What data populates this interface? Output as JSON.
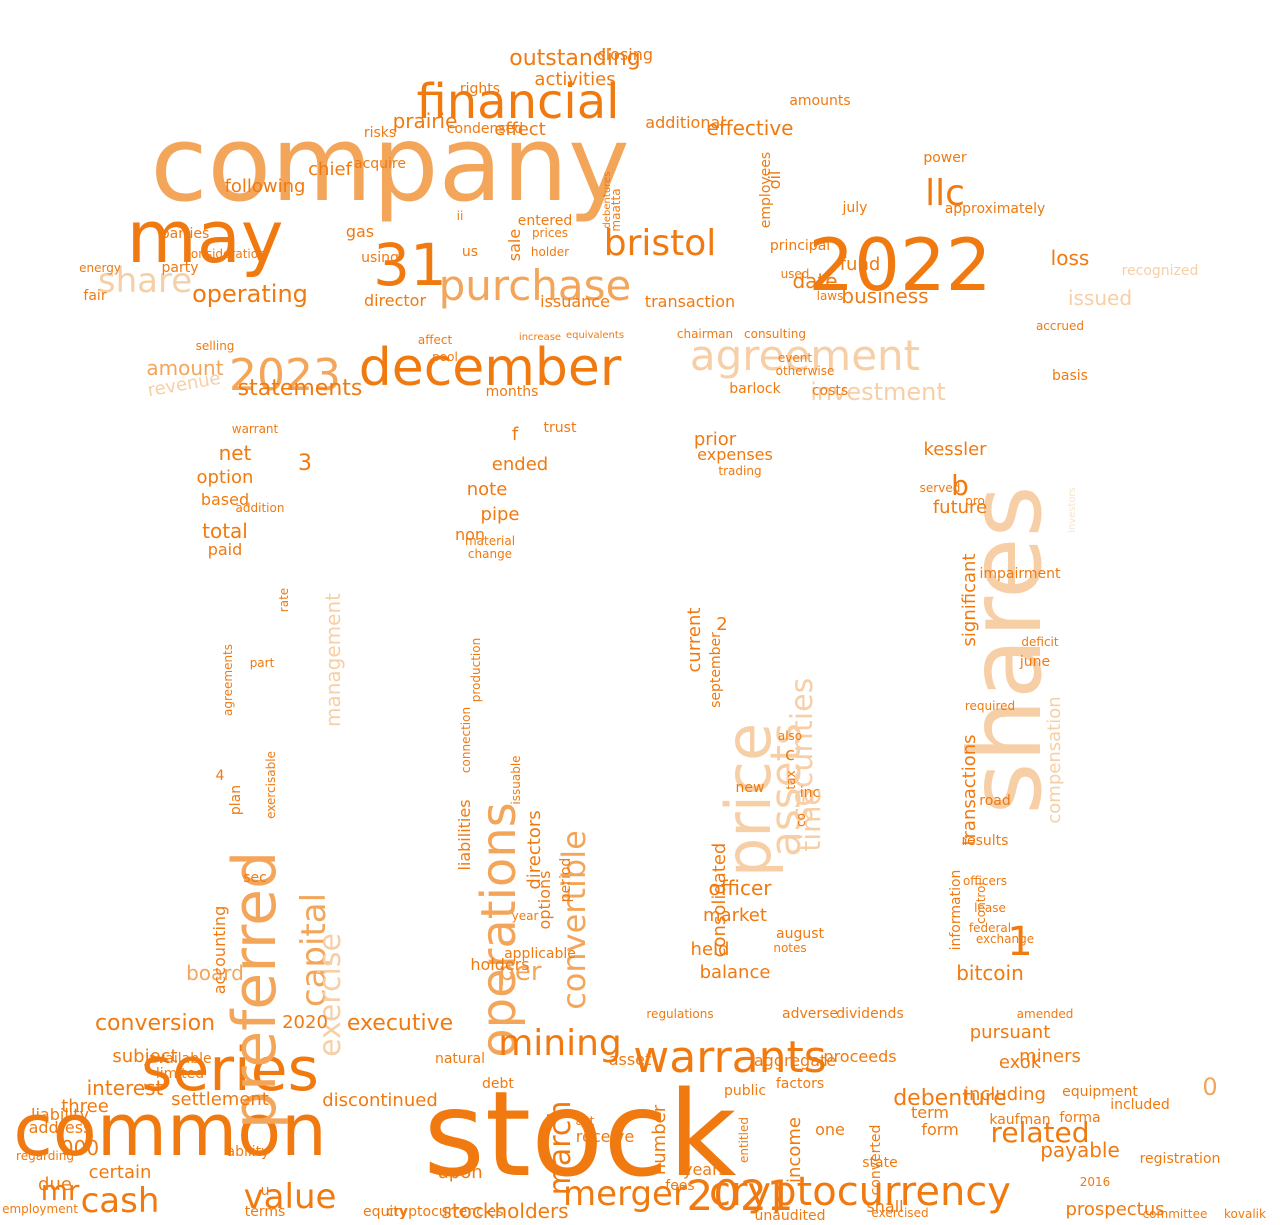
{
  "wordcloud": {
    "palette": {
      "dark": "#f07a10",
      "mid": "#f3a55a",
      "light": "#f7cfa6",
      "pale": "#f9e2c9"
    },
    "shape": "bank-building",
    "words": [
      {
        "text": "company",
        "tone": "mid"
      },
      {
        "text": "stock",
        "tone": "dark"
      },
      {
        "text": "common",
        "tone": "dark"
      },
      {
        "text": "shares",
        "tone": "light"
      },
      {
        "text": "series",
        "tone": "dark"
      },
      {
        "text": "december",
        "tone": "dark"
      },
      {
        "text": "may",
        "tone": "dark"
      },
      {
        "text": "2022",
        "tone": "dark"
      },
      {
        "text": "31",
        "tone": "dark"
      },
      {
        "text": "preferred",
        "tone": "mid"
      },
      {
        "text": "price",
        "tone": "light"
      },
      {
        "text": "financial",
        "tone": "dark"
      },
      {
        "text": "cryptocurrency",
        "tone": "dark"
      },
      {
        "text": "operations",
        "tone": "mid"
      },
      {
        "text": "warrants",
        "tone": "dark"
      },
      {
        "text": "agreement",
        "tone": "light"
      },
      {
        "text": "purchase",
        "tone": "mid"
      },
      {
        "text": "bristol",
        "tone": "dark"
      },
      {
        "text": "mining",
        "tone": "dark"
      },
      {
        "text": "2021",
        "tone": "dark"
      },
      {
        "text": "value",
        "tone": "dark"
      },
      {
        "text": "cash",
        "tone": "dark"
      },
      {
        "text": "merger",
        "tone": "dark"
      },
      {
        "text": "2023",
        "tone": "mid"
      },
      {
        "text": "capital",
        "tone": "mid"
      },
      {
        "text": "convertible",
        "tone": "mid"
      },
      {
        "text": "exercise",
        "tone": "light"
      },
      {
        "text": "assets",
        "tone": "light"
      },
      {
        "text": "share",
        "tone": "light"
      },
      {
        "text": "llc",
        "tone": "dark"
      },
      {
        "text": "march",
        "tone": "dark"
      },
      {
        "text": "securities",
        "tone": "light"
      },
      {
        "text": "outstanding",
        "tone": "dark"
      },
      {
        "text": "operating",
        "tone": "dark"
      },
      {
        "text": "related",
        "tone": "dark"
      },
      {
        "text": "statements",
        "tone": "dark"
      },
      {
        "text": "investment",
        "tone": "light"
      },
      {
        "text": "conversion",
        "tone": "dark"
      },
      {
        "text": "per",
        "tone": "mid"
      },
      {
        "text": "mr",
        "tone": "dark"
      },
      {
        "text": "1",
        "tone": "dark"
      },
      {
        "text": "b",
        "tone": "dark"
      },
      {
        "text": "date",
        "tone": "dark"
      },
      {
        "text": "business",
        "tone": "dark"
      },
      {
        "text": "debenture",
        "tone": "dark"
      },
      {
        "text": "executive",
        "tone": "dark"
      },
      {
        "text": "stockholders",
        "tone": "dark"
      },
      {
        "text": "prairie",
        "tone": "dark"
      },
      {
        "text": "effective",
        "tone": "dark"
      },
      {
        "text": "activities",
        "tone": "dark"
      },
      {
        "text": "effect",
        "tone": "dark"
      },
      {
        "text": "time",
        "tone": "light"
      },
      {
        "text": "management",
        "tone": "light"
      },
      {
        "text": "transactions",
        "tone": "dark"
      },
      {
        "text": "significant",
        "tone": "dark"
      },
      {
        "text": "compensation",
        "tone": "light"
      },
      {
        "text": "consolidated",
        "tone": "dark"
      },
      {
        "text": "officer",
        "tone": "dark"
      },
      {
        "text": "market",
        "tone": "dark"
      },
      {
        "text": "balance",
        "tone": "dark"
      },
      {
        "text": "held",
        "tone": "dark"
      },
      {
        "text": "board",
        "tone": "mid"
      },
      {
        "text": "total",
        "tone": "dark"
      },
      {
        "text": "net",
        "tone": "dark"
      },
      {
        "text": "option",
        "tone": "dark"
      },
      {
        "text": "based",
        "tone": "dark"
      },
      {
        "text": "paid",
        "tone": "dark"
      },
      {
        "text": "3",
        "tone": "dark"
      },
      {
        "text": "amount",
        "tone": "mid"
      },
      {
        "text": "revenue",
        "tone": "light"
      },
      {
        "text": "loss",
        "tone": "dark"
      },
      {
        "text": "fund",
        "tone": "dark"
      },
      {
        "text": "issued",
        "tone": "light"
      },
      {
        "text": "chief",
        "tone": "dark"
      },
      {
        "text": "following",
        "tone": "dark"
      },
      {
        "text": "gas",
        "tone": "dark"
      },
      {
        "text": "director",
        "tone": "dark"
      },
      {
        "text": "issuance",
        "tone": "dark"
      },
      {
        "text": "transaction",
        "tone": "dark"
      },
      {
        "text": "kessler",
        "tone": "dark"
      },
      {
        "text": "future",
        "tone": "dark"
      },
      {
        "text": "bitcoin",
        "tone": "dark"
      },
      {
        "text": "prior",
        "tone": "dark"
      },
      {
        "text": "expenses",
        "tone": "dark"
      },
      {
        "text": "current",
        "tone": "dark"
      },
      {
        "text": "ended",
        "tone": "dark"
      },
      {
        "text": "note",
        "tone": "dark"
      },
      {
        "text": "pipe",
        "tone": "dark"
      },
      {
        "text": "non",
        "tone": "dark"
      },
      {
        "text": "holders",
        "tone": "dark"
      },
      {
        "text": "interest",
        "tone": "dark"
      },
      {
        "text": "certain",
        "tone": "dark"
      },
      {
        "text": "000",
        "tone": "dark"
      },
      {
        "text": "subject",
        "tone": "dark"
      },
      {
        "text": "settlement",
        "tone": "dark"
      },
      {
        "text": "discontinued",
        "tone": "dark"
      },
      {
        "text": "upon",
        "tone": "dark"
      },
      {
        "text": "pursuant",
        "tone": "dark"
      },
      {
        "text": "miners",
        "tone": "dark"
      },
      {
        "text": "including",
        "tone": "dark"
      },
      {
        "text": "payable",
        "tone": "dark"
      },
      {
        "text": "prospectus",
        "tone": "dark"
      },
      {
        "text": "aggregate",
        "tone": "dark"
      },
      {
        "text": "proceeds",
        "tone": "dark"
      },
      {
        "text": "number",
        "tone": "dark"
      },
      {
        "text": "income",
        "tone": "dark"
      },
      {
        "text": "accounting",
        "tone": "dark"
      },
      {
        "text": "liabilities",
        "tone": "dark"
      },
      {
        "text": "directors",
        "tone": "dark"
      },
      {
        "text": "options",
        "tone": "dark"
      },
      {
        "text": "2020",
        "tone": "dark"
      },
      {
        "text": "asset",
        "tone": "dark"
      },
      {
        "text": "form",
        "tone": "dark"
      },
      {
        "text": "term",
        "tone": "dark"
      },
      {
        "text": "three",
        "tone": "dark"
      },
      {
        "text": "address",
        "tone": "dark"
      },
      {
        "text": "liability",
        "tone": "dark"
      },
      {
        "text": "due",
        "tone": "dark"
      },
      {
        "text": "exok",
        "tone": "dark"
      },
      {
        "text": "registration",
        "tone": "dark"
      },
      {
        "text": "state",
        "tone": "dark"
      },
      {
        "text": "shall",
        "tone": "dark"
      },
      {
        "text": "years",
        "tone": "dark"
      },
      {
        "text": "fees",
        "tone": "dark"
      },
      {
        "text": "unaudited",
        "tone": "dark"
      },
      {
        "text": "terms",
        "tone": "dark"
      },
      {
        "text": "equity",
        "tone": "dark"
      },
      {
        "text": "cryptocurrencies",
        "tone": "dark"
      },
      {
        "text": "ability",
        "tone": "dark"
      },
      {
        "text": "employment",
        "tone": "dark"
      },
      {
        "text": "regarding",
        "tone": "dark"
      },
      {
        "text": "receive",
        "tone": "dark"
      },
      {
        "text": "act",
        "tone": "dark"
      },
      {
        "text": "one",
        "tone": "dark"
      },
      {
        "text": "converted",
        "tone": "dark"
      },
      {
        "text": "exercised",
        "tone": "dark"
      },
      {
        "text": "committee",
        "tone": "dark"
      },
      {
        "text": "kovalik",
        "tone": "dark"
      },
      {
        "text": "months",
        "tone": "dark"
      },
      {
        "text": "barlock",
        "tone": "dark"
      },
      {
        "text": "costs",
        "tone": "dark"
      },
      {
        "text": "basis",
        "tone": "dark"
      },
      {
        "text": "selling",
        "tone": "dark"
      },
      {
        "text": "pool",
        "tone": "dark"
      },
      {
        "text": "affect",
        "tone": "dark"
      },
      {
        "text": "otherwise",
        "tone": "dark"
      },
      {
        "text": "event",
        "tone": "dark"
      },
      {
        "text": "equivalents",
        "tone": "dark"
      },
      {
        "text": "chairman",
        "tone": "dark"
      },
      {
        "text": "consulting",
        "tone": "dark"
      },
      {
        "text": "increase",
        "tone": "dark"
      },
      {
        "text": "energy",
        "tone": "dark"
      },
      {
        "text": "fair",
        "tone": "dark"
      },
      {
        "text": "parties",
        "tone": "dark"
      },
      {
        "text": "party",
        "tone": "dark"
      },
      {
        "text": "consideration",
        "tone": "dark"
      },
      {
        "text": "using",
        "tone": "dark"
      },
      {
        "text": "us",
        "tone": "dark"
      },
      {
        "text": "sale",
        "tone": "dark"
      },
      {
        "text": "entered",
        "tone": "dark"
      },
      {
        "text": "prices",
        "tone": "dark"
      },
      {
        "text": "holder",
        "tone": "dark"
      },
      {
        "text": "acquire",
        "tone": "dark"
      },
      {
        "text": "risks",
        "tone": "dark"
      },
      {
        "text": "condensed",
        "tone": "dark"
      },
      {
        "text": "rights",
        "tone": "dark"
      },
      {
        "text": "closing",
        "tone": "dark"
      },
      {
        "text": "additional",
        "tone": "dark"
      },
      {
        "text": "amounts",
        "tone": "dark"
      },
      {
        "text": "oil",
        "tone": "dark"
      },
      {
        "text": "employees",
        "tone": "dark"
      },
      {
        "text": "approximately",
        "tone": "dark"
      },
      {
        "text": "principal",
        "tone": "dark"
      },
      {
        "text": "july",
        "tone": "dark"
      },
      {
        "text": "power",
        "tone": "dark"
      },
      {
        "text": "used",
        "tone": "dark"
      },
      {
        "text": "recognized",
        "tone": "light"
      },
      {
        "text": "accrued",
        "tone": "dark"
      },
      {
        "text": "laws",
        "tone": "dark"
      },
      {
        "text": "ii",
        "tone": "dark"
      },
      {
        "text": "maatta",
        "tone": "dark"
      },
      {
        "text": "debentures",
        "tone": "dark"
      },
      {
        "text": "trust",
        "tone": "dark"
      },
      {
        "text": "f",
        "tone": "dark"
      },
      {
        "text": "sec",
        "tone": "dark"
      },
      {
        "text": "plan",
        "tone": "dark"
      },
      {
        "text": "exercisable",
        "tone": "dark"
      },
      {
        "text": "agreements",
        "tone": "dark"
      },
      {
        "text": "part",
        "tone": "dark"
      },
      {
        "text": "rate",
        "tone": "dark"
      },
      {
        "text": "warrant",
        "tone": "dark"
      },
      {
        "text": "addition",
        "tone": "dark"
      },
      {
        "text": "4",
        "tone": "dark"
      },
      {
        "text": "limited",
        "tone": "dark"
      },
      {
        "text": "available",
        "tone": "dark"
      },
      {
        "text": "u",
        "tone": "dark"
      },
      {
        "text": "natural",
        "tone": "dark"
      },
      {
        "text": "debt",
        "tone": "dark"
      },
      {
        "text": "year",
        "tone": "dark"
      },
      {
        "text": "period",
        "tone": "dark"
      },
      {
        "text": "issuable",
        "tone": "dark"
      },
      {
        "text": "material",
        "tone": "dark"
      },
      {
        "text": "change",
        "tone": "dark"
      },
      {
        "text": "connection",
        "tone": "dark"
      },
      {
        "text": "production",
        "tone": "dark"
      },
      {
        "text": "applicable",
        "tone": "dark"
      },
      {
        "text": "2",
        "tone": "dark"
      },
      {
        "text": "september",
        "tone": "dark"
      },
      {
        "text": "trading",
        "tone": "dark"
      },
      {
        "text": "c",
        "tone": "dark"
      },
      {
        "text": "also",
        "tone": "dark"
      },
      {
        "text": "inc",
        "tone": "dark"
      },
      {
        "text": "tax",
        "tone": "dark"
      },
      {
        "text": "co",
        "tone": "dark"
      },
      {
        "text": "new",
        "tone": "dark"
      },
      {
        "text": "notes",
        "tone": "dark"
      },
      {
        "text": "august",
        "tone": "dark"
      },
      {
        "text": "june",
        "tone": "dark"
      },
      {
        "text": "impairment",
        "tone": "dark"
      },
      {
        "text": "deficit",
        "tone": "dark"
      },
      {
        "text": "required",
        "tone": "dark"
      },
      {
        "text": "results",
        "tone": "dark"
      },
      {
        "text": "officers",
        "tone": "dark"
      },
      {
        "text": "road",
        "tone": "dark"
      },
      {
        "text": "lease",
        "tone": "dark"
      },
      {
        "text": "federal",
        "tone": "dark"
      },
      {
        "text": "exchange",
        "tone": "dark"
      },
      {
        "text": "information",
        "tone": "dark"
      },
      {
        "text": "served",
        "tone": "dark"
      },
      {
        "text": "pro",
        "tone": "dark"
      },
      {
        "text": "control",
        "tone": "dark"
      },
      {
        "text": "investors",
        "tone": "pale"
      },
      {
        "text": "dividends",
        "tone": "dark"
      },
      {
        "text": "adverse",
        "tone": "dark"
      },
      {
        "text": "regulations",
        "tone": "dark"
      },
      {
        "text": "amended",
        "tone": "dark"
      },
      {
        "text": "public",
        "tone": "dark"
      },
      {
        "text": "factors",
        "tone": "dark"
      },
      {
        "text": "kaufman",
        "tone": "dark"
      },
      {
        "text": "included",
        "tone": "dark"
      },
      {
        "text": "equipment",
        "tone": "dark"
      },
      {
        "text": "forma",
        "tone": "dark"
      },
      {
        "text": "2016",
        "tone": "dark"
      },
      {
        "text": "entitled",
        "tone": "dark"
      },
      {
        "text": "0",
        "tone": "mid"
      }
    ]
  }
}
